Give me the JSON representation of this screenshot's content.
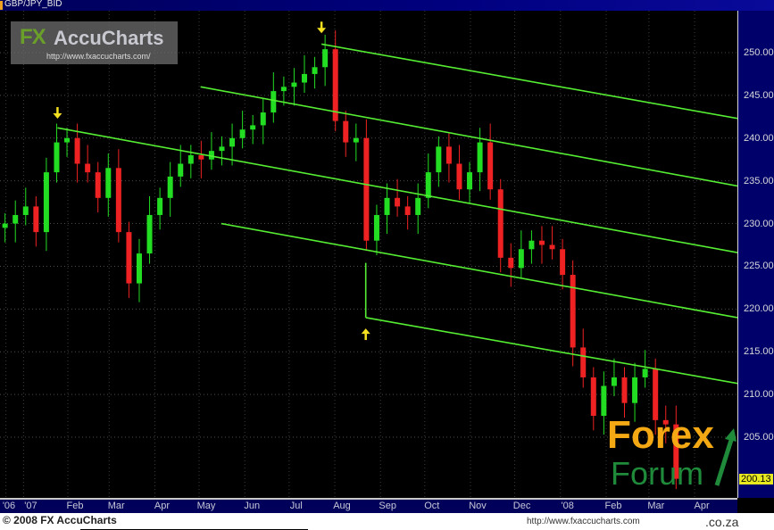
{
  "window": {
    "title": "GBP/JPY_BID"
  },
  "logo": {
    "brand_fx": "FX",
    "brand_name": "AccuCharts",
    "url": "http://www.fxaccucharts.com/"
  },
  "footer": {
    "copyright": "© 2008 FX AccuCharts"
  },
  "watermark": {
    "forex": "Forex",
    "forum": "Forum",
    "domain": ".co.za",
    "url": "http://www.fxaccucharts.com"
  },
  "colors": {
    "up": "#22dd22",
    "down": "#ee2222",
    "channel": "#55ee33",
    "arrow": "#f4e020",
    "axis_bg": "#00006a"
  },
  "chart_data": {
    "type": "candlestick",
    "title": "GBP/JPY_BID",
    "x_tick_labels": [
      "'06",
      "'07",
      "Feb",
      "Mar",
      "Apr",
      "May",
      "Jun",
      "Jul",
      "Aug",
      "Sep",
      "Oct",
      "Nov",
      "Dec",
      "'08",
      "Feb",
      "Mar",
      "Apr"
    ],
    "x_tick_dates": [
      "2006-12-21",
      "2007-01-02",
      "2007-02-01",
      "2007-03-01",
      "2007-04-01",
      "2007-05-01",
      "2007-06-01",
      "2007-07-01",
      "2007-08-01",
      "2007-09-01",
      "2007-10-01",
      "2007-11-01",
      "2007-12-01",
      "2008-01-01",
      "2008-02-01",
      "2008-03-01",
      "2008-04-01"
    ],
    "y_ticks": [
      "250.00",
      "245.00",
      "240.00",
      "235.00",
      "230.00",
      "225.00",
      "220.00",
      "215.00",
      "210.00",
      "205.00"
    ],
    "ylim": [
      199,
      254
    ],
    "xlim": [
      "2006-12-17",
      "2008-04-30"
    ],
    "grid": true,
    "last_price": "200.13",
    "weeks": [
      "2006-12-18",
      "2006-12-25",
      "2007-01-01",
      "2007-01-08",
      "2007-01-15",
      "2007-01-22",
      "2007-01-29",
      "2007-02-05",
      "2007-02-12",
      "2007-02-19",
      "2007-02-26",
      "2007-03-05",
      "2007-03-12",
      "2007-03-19",
      "2007-03-26",
      "2007-04-02",
      "2007-04-09",
      "2007-04-16",
      "2007-04-23",
      "2007-04-30",
      "2007-05-07",
      "2007-05-14",
      "2007-05-21",
      "2007-05-28",
      "2007-06-04",
      "2007-06-11",
      "2007-06-18",
      "2007-06-25",
      "2007-07-02",
      "2007-07-09",
      "2007-07-16",
      "2007-07-23",
      "2007-07-30",
      "2007-08-06",
      "2007-08-13",
      "2007-08-20",
      "2007-08-27",
      "2007-09-03",
      "2007-09-10",
      "2007-09-17",
      "2007-09-24",
      "2007-10-01",
      "2007-10-08",
      "2007-10-15",
      "2007-10-22",
      "2007-10-29",
      "2007-11-05",
      "2007-11-12",
      "2007-11-19",
      "2007-11-26",
      "2007-12-03",
      "2007-12-10",
      "2007-12-17",
      "2007-12-24",
      "2007-12-31",
      "2008-01-07",
      "2008-01-14",
      "2008-01-21",
      "2008-01-28",
      "2008-02-04",
      "2008-02-11",
      "2008-02-18",
      "2008-02-25",
      "2008-03-03",
      "2008-03-10",
      "2008-03-17"
    ],
    "close": [
      230,
      231,
      232,
      229,
      236,
      239.5,
      240,
      237,
      236,
      233,
      236.5,
      229,
      223,
      226.5,
      231,
      233,
      235.5,
      237,
      238,
      237.5,
      238.5,
      239,
      240,
      241,
      241.5,
      243,
      245.5,
      246,
      246.5,
      247.5,
      248.3,
      250.4,
      242,
      239.5,
      240,
      228,
      231,
      233,
      232,
      231,
      233,
      236,
      239,
      237,
      234,
      236,
      239.5,
      234,
      226,
      224.8,
      227,
      228,
      227.5,
      227,
      224,
      215.5,
      212,
      207.5,
      211,
      212,
      209,
      212,
      213,
      207,
      206.5,
      200.13
    ],
    "annotations": {
      "channel_lines": [
        {
          "from": [
            "2007-07-23",
            251.0
          ],
          "to": [
            "2008-04-30",
            242.3
          ]
        },
        {
          "from": [
            "2007-05-02",
            246.0
          ],
          "to": [
            "2008-04-30",
            234.4
          ]
        },
        {
          "from": [
            "2007-01-25",
            241.2
          ],
          "to": [
            "2008-04-30",
            226.6
          ]
        },
        {
          "from": [
            "2007-05-16",
            230.0
          ],
          "to": [
            "2008-04-30",
            219.0
          ]
        },
        {
          "from": [
            "2007-08-22",
            219.0
          ],
          "to": [
            "2008-04-30",
            211.3
          ]
        },
        {
          "from": [
            "2007-08-22",
            225.4
          ],
          "to": [
            "2007-08-22",
            219.0
          ]
        }
      ],
      "arrows": [
        {
          "date": "2007-01-25",
          "price": 243.0,
          "dir": "down"
        },
        {
          "date": "2007-07-23",
          "price": 253.0,
          "dir": "up_from_above"
        },
        {
          "date": "2007-08-22",
          "price": 217.0,
          "dir": "up"
        }
      ]
    }
  }
}
